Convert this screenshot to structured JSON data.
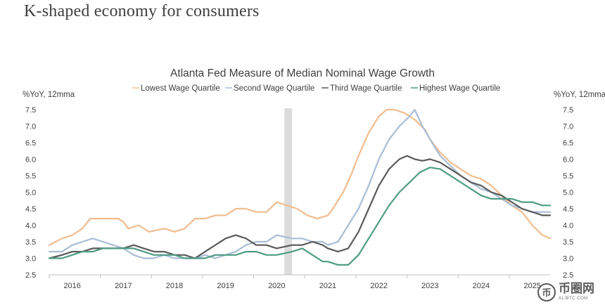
{
  "slide_title": "K-shaped economy for consumers",
  "watermark": {
    "icon": "coin-logo-icon",
    "name": "币圈网",
    "url": "ALIBTC.COM"
  },
  "chart_data": {
    "type": "line",
    "title": "Atlanta Fed Measure of Median Nominal Wage Growth",
    "ylabel_left": "%YoY, 12mma",
    "ylabel_right": "%YoY, 12mma",
    "ylim": [
      2.5,
      7.5
    ],
    "yticks": [
      "2.5",
      "3.0",
      "3.5",
      "4.0",
      "4.5",
      "5.0",
      "5.5",
      "6.0",
      "6.5",
      "7.0",
      "7.5"
    ],
    "xlim": [
      2015.55,
      2025.35
    ],
    "xticks": [
      {
        "label": "2016",
        "x": 2016.0
      },
      {
        "label": "2017",
        "x": 2017.0
      },
      {
        "label": "2018",
        "x": 2018.0
      },
      {
        "label": "2019",
        "x": 2019.0
      },
      {
        "label": "2020",
        "x": 2020.0
      },
      {
        "label": "2021",
        "x": 2021.0
      },
      {
        "label": "2022",
        "x": 2022.0
      },
      {
        "label": "2023",
        "x": 2023.0
      },
      {
        "label": "2024",
        "x": 2024.0
      },
      {
        "label": "2025",
        "x": 2025.0
      }
    ],
    "recession": [
      2020.15,
      2020.3
    ],
    "series": [
      {
        "name": "Lowest Wage Quartile",
        "color": "#f0bd8f",
        "points": [
          [
            2015.55,
            3.4
          ],
          [
            2015.8,
            3.6
          ],
          [
            2016.0,
            3.7
          ],
          [
            2016.2,
            3.9
          ],
          [
            2016.35,
            4.2
          ],
          [
            2016.6,
            4.2
          ],
          [
            2016.9,
            4.2
          ],
          [
            2017.0,
            4.1
          ],
          [
            2017.1,
            3.9
          ],
          [
            2017.3,
            4.0
          ],
          [
            2017.5,
            3.8
          ],
          [
            2017.8,
            3.9
          ],
          [
            2018.0,
            3.8
          ],
          [
            2018.2,
            3.9
          ],
          [
            2018.4,
            4.2
          ],
          [
            2018.6,
            4.2
          ],
          [
            2018.8,
            4.3
          ],
          [
            2019.0,
            4.3
          ],
          [
            2019.2,
            4.5
          ],
          [
            2019.4,
            4.5
          ],
          [
            2019.6,
            4.4
          ],
          [
            2019.8,
            4.4
          ],
          [
            2020.0,
            4.7
          ],
          [
            2020.2,
            4.6
          ],
          [
            2020.4,
            4.5
          ],
          [
            2020.6,
            4.3
          ],
          [
            2020.8,
            4.2
          ],
          [
            2021.0,
            4.3
          ],
          [
            2021.1,
            4.5
          ],
          [
            2021.3,
            5.0
          ],
          [
            2021.45,
            5.5
          ],
          [
            2021.6,
            6.1
          ],
          [
            2021.8,
            6.8
          ],
          [
            2022.0,
            7.3
          ],
          [
            2022.15,
            7.5
          ],
          [
            2022.3,
            7.5
          ],
          [
            2022.5,
            7.4
          ],
          [
            2022.7,
            7.2
          ],
          [
            2022.9,
            6.9
          ],
          [
            2023.0,
            6.6
          ],
          [
            2023.2,
            6.2
          ],
          [
            2023.4,
            5.9
          ],
          [
            2023.6,
            5.7
          ],
          [
            2023.8,
            5.5
          ],
          [
            2024.0,
            5.4
          ],
          [
            2024.2,
            5.2
          ],
          [
            2024.4,
            4.9
          ],
          [
            2024.6,
            4.6
          ],
          [
            2024.8,
            4.4
          ],
          [
            2025.0,
            4.0
          ],
          [
            2025.2,
            3.7
          ],
          [
            2025.35,
            3.6
          ]
        ]
      },
      {
        "name": "Second Wage Quartile",
        "color": "#a9bdd6",
        "points": [
          [
            2015.55,
            3.2
          ],
          [
            2015.8,
            3.2
          ],
          [
            2016.0,
            3.4
          ],
          [
            2016.2,
            3.5
          ],
          [
            2016.4,
            3.6
          ],
          [
            2016.6,
            3.5
          ],
          [
            2016.8,
            3.4
          ],
          [
            2017.0,
            3.3
          ],
          [
            2017.2,
            3.1
          ],
          [
            2017.4,
            3.0
          ],
          [
            2017.6,
            3.0
          ],
          [
            2017.8,
            3.1
          ],
          [
            2018.0,
            3.0
          ],
          [
            2018.2,
            3.0
          ],
          [
            2018.4,
            3.0
          ],
          [
            2018.6,
            3.1
          ],
          [
            2018.8,
            3.0
          ],
          [
            2019.0,
            3.1
          ],
          [
            2019.2,
            3.2
          ],
          [
            2019.4,
            3.4
          ],
          [
            2019.6,
            3.5
          ],
          [
            2019.8,
            3.5
          ],
          [
            2020.0,
            3.7
          ],
          [
            2020.3,
            3.6
          ],
          [
            2020.5,
            3.6
          ],
          [
            2020.7,
            3.5
          ],
          [
            2020.9,
            3.5
          ],
          [
            2021.0,
            3.4
          ],
          [
            2021.2,
            3.5
          ],
          [
            2021.4,
            4.0
          ],
          [
            2021.6,
            4.5
          ],
          [
            2021.8,
            5.2
          ],
          [
            2022.0,
            6.0
          ],
          [
            2022.2,
            6.6
          ],
          [
            2022.4,
            7.0
          ],
          [
            2022.6,
            7.3
          ],
          [
            2022.7,
            7.5
          ],
          [
            2022.85,
            7.0
          ],
          [
            2023.0,
            6.6
          ],
          [
            2023.2,
            6.1
          ],
          [
            2023.4,
            5.8
          ],
          [
            2023.6,
            5.5
          ],
          [
            2023.8,
            5.3
          ],
          [
            2024.0,
            5.1
          ],
          [
            2024.2,
            5.0
          ],
          [
            2024.4,
            4.8
          ],
          [
            2024.6,
            4.6
          ],
          [
            2024.8,
            4.5
          ],
          [
            2025.0,
            4.4
          ],
          [
            2025.2,
            4.4
          ],
          [
            2025.35,
            4.4
          ]
        ]
      },
      {
        "name": "Third Wage Quartile",
        "color": "#5a5a5a",
        "points": [
          [
            2015.55,
            3.0
          ],
          [
            2015.8,
            3.1
          ],
          [
            2016.0,
            3.2
          ],
          [
            2016.2,
            3.2
          ],
          [
            2016.4,
            3.3
          ],
          [
            2016.6,
            3.3
          ],
          [
            2016.8,
            3.3
          ],
          [
            2017.0,
            3.3
          ],
          [
            2017.2,
            3.4
          ],
          [
            2017.4,
            3.3
          ],
          [
            2017.6,
            3.2
          ],
          [
            2017.8,
            3.2
          ],
          [
            2018.0,
            3.1
          ],
          [
            2018.2,
            3.1
          ],
          [
            2018.4,
            3.0
          ],
          [
            2018.6,
            3.2
          ],
          [
            2018.8,
            3.4
          ],
          [
            2019.0,
            3.6
          ],
          [
            2019.2,
            3.7
          ],
          [
            2019.4,
            3.6
          ],
          [
            2019.6,
            3.4
          ],
          [
            2019.8,
            3.4
          ],
          [
            2020.0,
            3.3
          ],
          [
            2020.3,
            3.4
          ],
          [
            2020.5,
            3.4
          ],
          [
            2020.7,
            3.5
          ],
          [
            2020.9,
            3.4
          ],
          [
            2021.0,
            3.3
          ],
          [
            2021.2,
            3.2
          ],
          [
            2021.4,
            3.3
          ],
          [
            2021.6,
            3.8
          ],
          [
            2021.8,
            4.5
          ],
          [
            2022.0,
            5.2
          ],
          [
            2022.2,
            5.7
          ],
          [
            2022.4,
            6.0
          ],
          [
            2022.55,
            6.1
          ],
          [
            2022.7,
            6.0
          ],
          [
            2022.85,
            5.95
          ],
          [
            2023.0,
            6.0
          ],
          [
            2023.2,
            5.9
          ],
          [
            2023.4,
            5.7
          ],
          [
            2023.6,
            5.5
          ],
          [
            2023.8,
            5.3
          ],
          [
            2024.0,
            5.2
          ],
          [
            2024.2,
            5.0
          ],
          [
            2024.4,
            4.9
          ],
          [
            2024.6,
            4.7
          ],
          [
            2024.8,
            4.5
          ],
          [
            2025.0,
            4.4
          ],
          [
            2025.2,
            4.3
          ],
          [
            2025.35,
            4.3
          ]
        ]
      },
      {
        "name": "Highest Wage Quartile",
        "color": "#4e9c84",
        "points": [
          [
            2015.55,
            3.0
          ],
          [
            2015.8,
            3.0
          ],
          [
            2016.0,
            3.1
          ],
          [
            2016.2,
            3.2
          ],
          [
            2016.4,
            3.2
          ],
          [
            2016.6,
            3.3
          ],
          [
            2016.8,
            3.3
          ],
          [
            2017.0,
            3.3
          ],
          [
            2017.2,
            3.3
          ],
          [
            2017.4,
            3.2
          ],
          [
            2017.6,
            3.1
          ],
          [
            2017.8,
            3.1
          ],
          [
            2018.0,
            3.1
          ],
          [
            2018.2,
            3.0
          ],
          [
            2018.4,
            3.0
          ],
          [
            2018.6,
            3.0
          ],
          [
            2018.8,
            3.1
          ],
          [
            2019.0,
            3.1
          ],
          [
            2019.2,
            3.1
          ],
          [
            2019.4,
            3.2
          ],
          [
            2019.6,
            3.2
          ],
          [
            2019.8,
            3.1
          ],
          [
            2020.0,
            3.1
          ],
          [
            2020.3,
            3.2
          ],
          [
            2020.5,
            3.3
          ],
          [
            2020.7,
            3.1
          ],
          [
            2020.9,
            2.9
          ],
          [
            2021.0,
            2.9
          ],
          [
            2021.2,
            2.8
          ],
          [
            2021.4,
            2.8
          ],
          [
            2021.6,
            3.1
          ],
          [
            2021.8,
            3.6
          ],
          [
            2022.0,
            4.1
          ],
          [
            2022.2,
            4.6
          ],
          [
            2022.4,
            5.0
          ],
          [
            2022.6,
            5.3
          ],
          [
            2022.8,
            5.6
          ],
          [
            2023.0,
            5.75
          ],
          [
            2023.2,
            5.7
          ],
          [
            2023.4,
            5.5
          ],
          [
            2023.6,
            5.3
          ],
          [
            2023.8,
            5.1
          ],
          [
            2024.0,
            4.9
          ],
          [
            2024.2,
            4.8
          ],
          [
            2024.4,
            4.8
          ],
          [
            2024.6,
            4.8
          ],
          [
            2024.8,
            4.7
          ],
          [
            2025.0,
            4.7
          ],
          [
            2025.2,
            4.6
          ],
          [
            2025.35,
            4.6
          ]
        ]
      }
    ]
  }
}
